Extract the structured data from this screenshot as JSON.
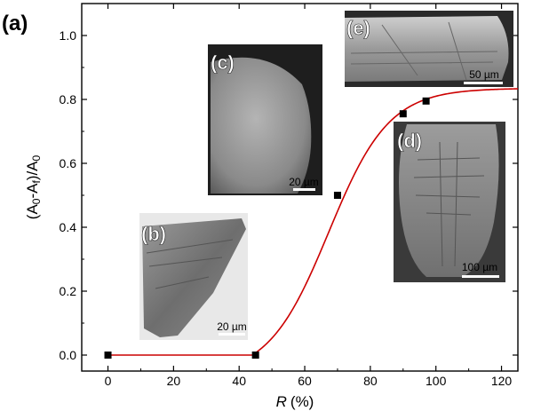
{
  "figure_label": "(a)",
  "chart_data": {
    "type": "scatter",
    "xlabel_italic": "R",
    "xlabel_unit": "(%)",
    "ylabel_parts": [
      "(A",
      "0",
      "-A",
      "f",
      ")/A",
      "0"
    ],
    "xlim": [
      -8,
      125
    ],
    "ylim": [
      -0.05,
      1.1
    ],
    "xticks": [
      0,
      20,
      40,
      60,
      80,
      100,
      120
    ],
    "yticks": [
      0.0,
      0.2,
      0.4,
      0.6,
      0.8,
      1.0
    ],
    "x_tick_labels": [
      "0",
      "20",
      "40",
      "60",
      "80",
      "100",
      "120"
    ],
    "y_tick_labels": [
      "0.0",
      "0.2",
      "0.4",
      "0.6",
      "0.8",
      "1.0"
    ],
    "series": [
      {
        "x": [
          0,
          45,
          70,
          90,
          97
        ],
        "y": [
          0.0,
          0.0,
          0.5,
          0.755,
          0.795
        ],
        "marker": "square",
        "color": "#000000"
      }
    ],
    "fit_curve": {
      "type": "sigmoid",
      "color": "#cc0000",
      "x_range": [
        0,
        125
      ],
      "onset": 44,
      "plateau": 0.835,
      "midpoint": 67.3,
      "width": 9.2
    },
    "grid": false
  },
  "insets": [
    {
      "label": "(b)",
      "scale_bar": "20 µm"
    },
    {
      "label": "(c)",
      "scale_bar": "20 µm"
    },
    {
      "label": "(d)",
      "scale_bar": "100 µm"
    },
    {
      "label": "(e)",
      "scale_bar": "50 µm"
    }
  ]
}
